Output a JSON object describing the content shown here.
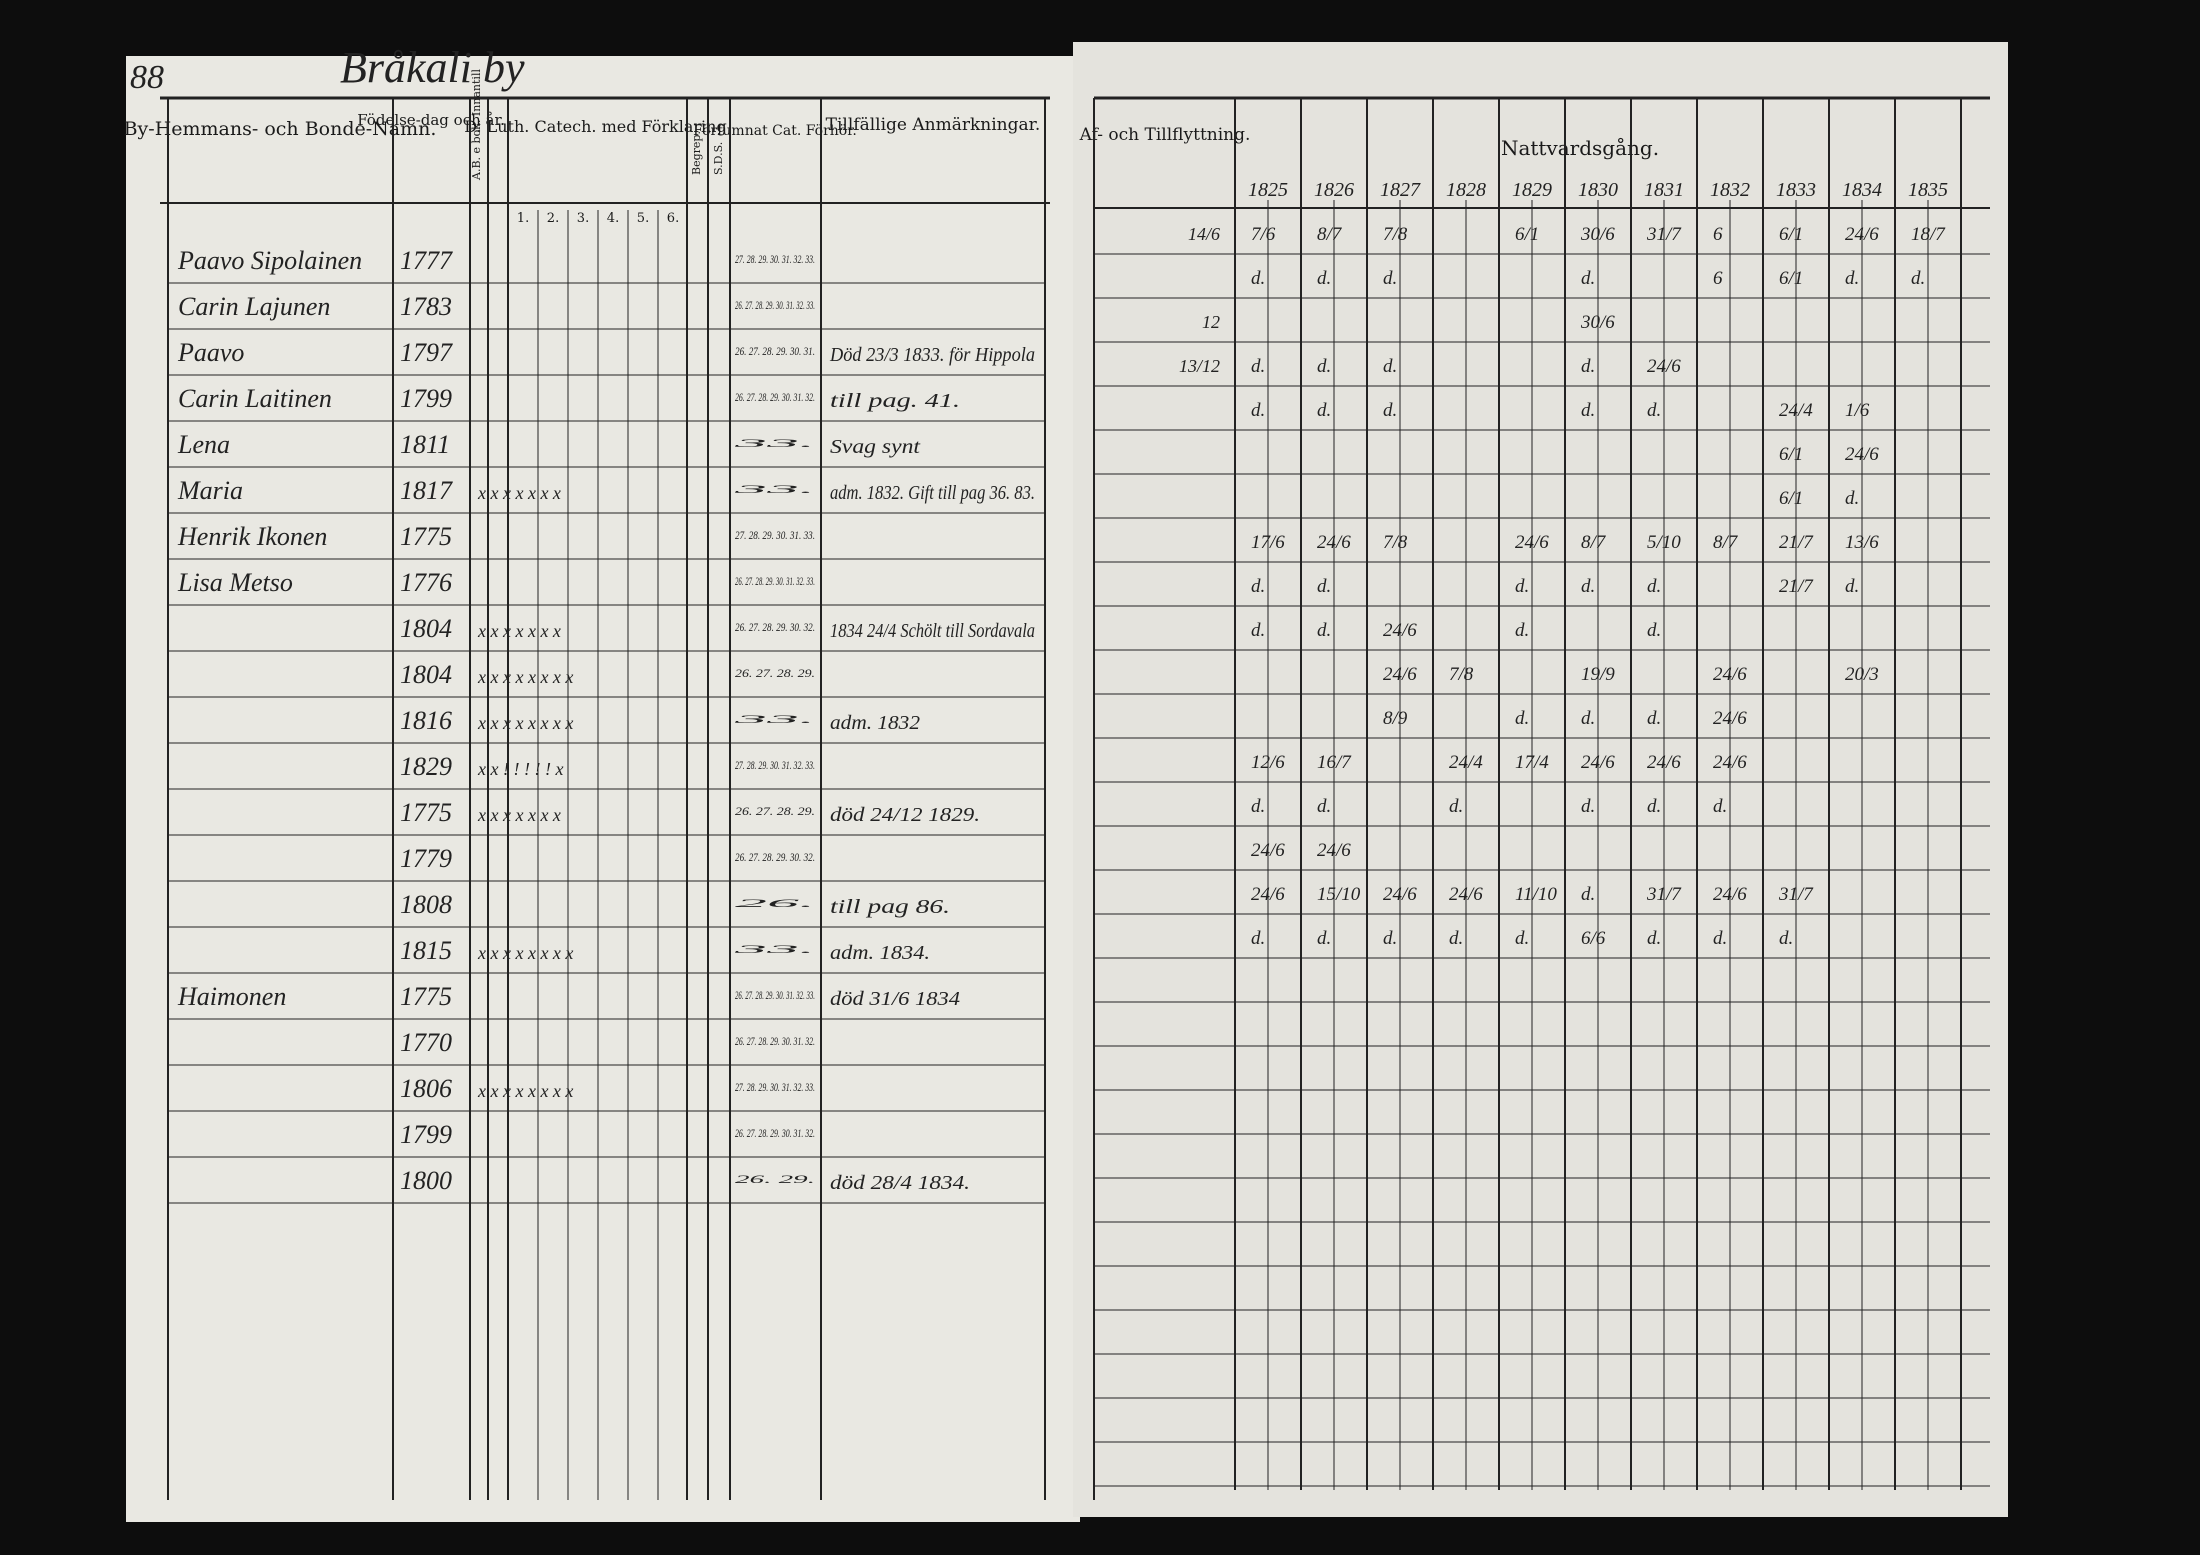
{
  "page_number": "88",
  "village": "Bråkali by",
  "left_page": {
    "headers": {
      "name": "By-Hemmans- och Bonde-Namn.",
      "born": "Födelse-dag och år.",
      "reading": "A.B. e bok. Innantill",
      "catechism": "D. Luth. Catech. med Förklaring.",
      "understanding": "Begrep.",
      "sds": "S.D.S.",
      "examinations": "Förfumnat Cat. Förhör.",
      "remarks": "Tillfällige Anmärkningar."
    },
    "catechism_parts": [
      "1.",
      "2.",
      "3.",
      "4.",
      "5.",
      "6."
    ],
    "rows": [
      {
        "name": "Paavo Sipolainen",
        "born": "1777",
        "examinations": "27. 28. 29. 30. 31. 32. 33."
      },
      {
        "name": "Carin Lajunen",
        "born": "1783",
        "examinations": "26. 27. 28. 29. 30. 31. 32. 33."
      },
      {
        "name": "Paavo",
        "born": "1797",
        "examinations": "26. 27. 28. 29. 30. 31.",
        "remarks": "Död 23/3 1833. för Hippola"
      },
      {
        "name": "Carin Laitinen",
        "born": "1799",
        "examinations": "26. 27. 28. 29. 30. 31. 32.",
        "remarks": "till pag. 41."
      },
      {
        "name": "Lena",
        "born": "1811",
        "examinations": "33.",
        "remarks": "Svag synt"
      },
      {
        "name": "Maria",
        "born": "1817",
        "reading": "x x x x x x x",
        "examinations": "33.",
        "remarks": "adm. 1832. Gift till pag 36. 83."
      },
      {
        "name": "Henrik Ikonen",
        "born": "1775",
        "examinations": "27. 28. 29. 30. 31. 33."
      },
      {
        "name": "Lisa Metso",
        "born": "1776",
        "examinations": "26. 27. 28. 29. 30. 31. 32. 33."
      },
      {
        "born": "1804",
        "reading": "x x x x x x x",
        "examinations": "26. 27. 28. 29. 30. 32.",
        "remarks": "1834 24/4 Schölt till Sordavala"
      },
      {
        "born": "1804",
        "reading": "x x x x x x x x",
        "examinations": "26. 27. 28. 29."
      },
      {
        "born": "1816",
        "reading": "x x x x x x x x",
        "examinations": "33.",
        "remarks": "adm. 1832"
      },
      {
        "born": "1829",
        "reading": "x x ! ! ! ! ! x",
        "examinations": "27. 28. 29. 30. 31. 32. 33."
      },
      {
        "born": "1775",
        "reading": "x x x x x x x",
        "examinations": "26. 27. 28. 29.",
        "remarks": "död 24/12 1829."
      },
      {
        "born": "1779",
        "examinations": "26. 27. 28. 29. 30. 32."
      },
      {
        "born": "1808",
        "examinations": "26.",
        "remarks": "till pag 86."
      },
      {
        "born": "1815",
        "reading": "x x x x x x x x",
        "examinations": "33.",
        "remarks": "adm. 1834."
      },
      {
        "name": "Haimonen",
        "born": "1775",
        "examinations": "26. 27. 28. 29. 30. 31. 32. 33.",
        "remarks": "död 31/6 1834"
      },
      {
        "born": "1770",
        "examinations": "26. 27. 28. 29. 30. 31. 32."
      },
      {
        "born": "1806",
        "reading": "x x x x x x x x",
        "examinations": "27. 28. 29. 30. 31. 32. 33."
      },
      {
        "born": "1799",
        "examinations": "26. 27. 28. 29. 30. 31. 32."
      },
      {
        "born": "1800",
        "examinations": "26. 29.",
        "remarks": "död 28/4 1834."
      }
    ]
  },
  "right_page": {
    "headers": {
      "moving": "Af- och Tillflyttning.",
      "communion": "Nattvardsgång."
    },
    "years": [
      "1825",
      "1826",
      "1827",
      "1828",
      "1829",
      "1830",
      "1831",
      "1832",
      "1833",
      "1834",
      "1835"
    ],
    "rows": [
      {
        "moving": "14/6",
        "cells": [
          "7/6",
          "8/7",
          "7/8",
          null,
          "6/1",
          "30/6",
          "31/7",
          "6",
          "6/1",
          "24/6",
          "18/7"
        ]
      },
      {
        "cells": [
          "d.",
          "d.",
          "d.",
          null,
          null,
          "d.",
          null,
          "6",
          "6/1",
          "d.",
          "d."
        ]
      },
      {
        "moving": "12",
        "cells": [
          null,
          null,
          null,
          null,
          null,
          "30/6",
          null,
          null,
          null,
          null,
          null
        ]
      },
      {
        "moving": "13/12",
        "cells": [
          "d.",
          "d.",
          "d.",
          null,
          null,
          "d.",
          "24/6",
          null,
          null,
          null,
          null
        ]
      },
      {
        "cells": [
          "d.",
          "d.",
          "d.",
          null,
          null,
          "d.",
          "d.",
          null,
          "24/4",
          "1/6",
          null
        ]
      },
      {
        "cells": [
          null,
          null,
          null,
          null,
          null,
          null,
          null,
          null,
          "6/1",
          "24/6",
          null
        ]
      },
      {
        "cells": [
          null,
          null,
          null,
          null,
          null,
          null,
          null,
          null,
          "6/1",
          "d.",
          null
        ]
      },
      {
        "cells": [
          "17/6",
          "24/6",
          "7/8",
          null,
          "24/6",
          "8/7",
          "5/10",
          "8/7",
          "21/7",
          "13/6",
          null
        ]
      },
      {
        "cells": [
          "d.",
          "d.",
          null,
          null,
          "d.",
          "d.",
          "d.",
          null,
          "21/7",
          "d.",
          null
        ]
      },
      {
        "cells": [
          "d.",
          "d.",
          "24/6",
          null,
          "d.",
          null,
          "d.",
          null,
          null,
          null,
          null
        ]
      },
      {
        "cells": [
          null,
          null,
          "24/6",
          "7/8",
          null,
          "19/9",
          null,
          "24/6",
          null,
          "20/3",
          null
        ]
      },
      {
        "cells": [
          null,
          null,
          "8/9",
          null,
          "d.",
          "d.",
          "d.",
          "24/6",
          null,
          null,
          null
        ]
      },
      {
        "cells": [
          "12/6",
          "16/7",
          null,
          "24/4",
          "17/4",
          "24/6",
          "24/6",
          "24/6",
          null,
          null,
          null
        ]
      },
      {
        "cells": [
          "d.",
          "d.",
          null,
          "d.",
          null,
          "d.",
          "d.",
          "d.",
          null,
          null,
          null
        ]
      },
      {
        "cells": [
          "24/6",
          "24/6",
          null,
          null,
          null,
          null,
          null,
          null,
          null,
          null,
          null
        ]
      },
      {
        "cells": [
          "24/6",
          "15/10",
          "24/6",
          "24/6",
          "11/10",
          "d.",
          "31/7",
          "24/6",
          "31/7",
          null,
          null
        ]
      },
      {
        "cells": [
          "d.",
          "d.",
          "d.",
          "d.",
          "d.",
          "6/6",
          "d.",
          "d.",
          "d.",
          null,
          null
        ]
      }
    ]
  }
}
